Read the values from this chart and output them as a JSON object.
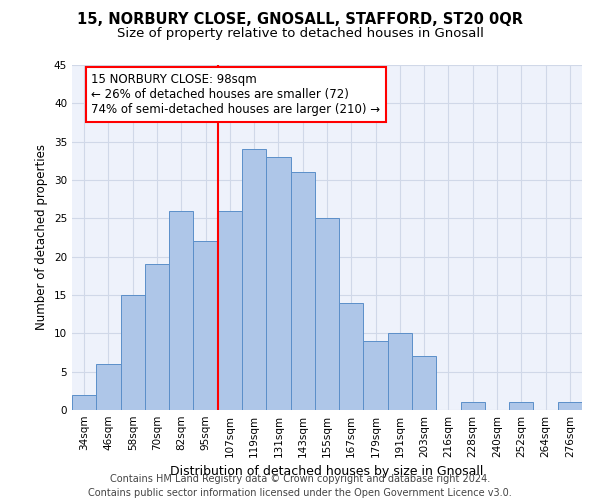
{
  "title": "15, NORBURY CLOSE, GNOSALL, STAFFORD, ST20 0QR",
  "subtitle": "Size of property relative to detached houses in Gnosall",
  "xlabel": "Distribution of detached houses by size in Gnosall",
  "ylabel": "Number of detached properties",
  "bar_labels": [
    "34sqm",
    "46sqm",
    "58sqm",
    "70sqm",
    "82sqm",
    "95sqm",
    "107sqm",
    "119sqm",
    "131sqm",
    "143sqm",
    "155sqm",
    "167sqm",
    "179sqm",
    "191sqm",
    "203sqm",
    "216sqm",
    "228sqm",
    "240sqm",
    "252sqm",
    "264sqm",
    "276sqm"
  ],
  "bar_values": [
    2,
    6,
    15,
    19,
    26,
    22,
    26,
    34,
    33,
    31,
    25,
    14,
    9,
    10,
    7,
    0,
    1,
    0,
    1,
    0,
    1
  ],
  "bar_color": "#aec6e8",
  "bar_edge_color": "#5b8fc9",
  "vline_color": "red",
  "vline_x_index": 5.5,
  "annotation_text": "15 NORBURY CLOSE: 98sqm\n← 26% of detached houses are smaller (72)\n74% of semi-detached houses are larger (210) →",
  "annotation_box_color": "white",
  "annotation_box_edge_color": "red",
  "ylim": [
    0,
    45
  ],
  "yticks": [
    0,
    5,
    10,
    15,
    20,
    25,
    30,
    35,
    40,
    45
  ],
  "grid_color": "#d0d8e8",
  "background_color": "#eef2fb",
  "footer": "Contains HM Land Registry data © Crown copyright and database right 2024.\nContains public sector information licensed under the Open Government Licence v3.0.",
  "title_fontsize": 10.5,
  "subtitle_fontsize": 9.5,
  "xlabel_fontsize": 9,
  "ylabel_fontsize": 8.5,
  "tick_fontsize": 7.5,
  "annotation_fontsize": 8.5,
  "footer_fontsize": 7
}
